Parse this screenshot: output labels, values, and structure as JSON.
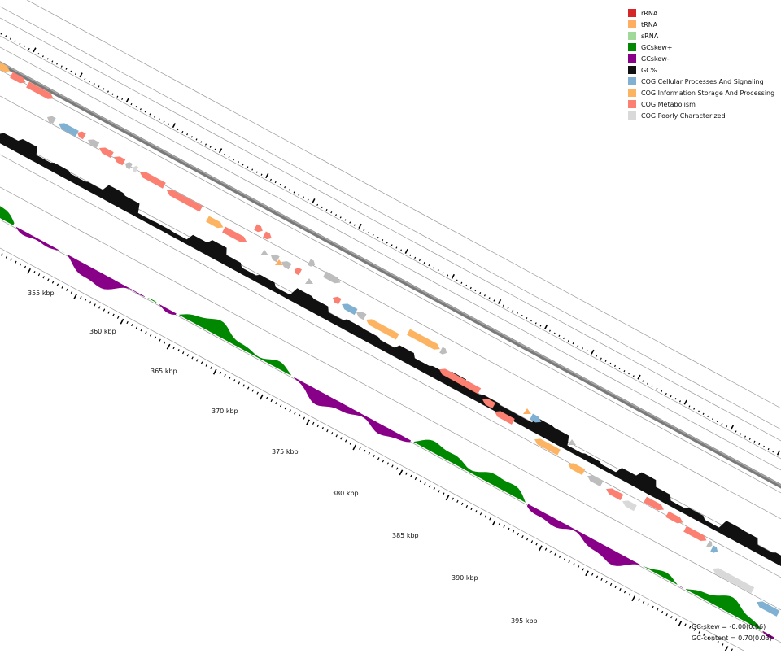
{
  "legend": [
    {
      "label": "rRNA",
      "color": "#d62728"
    },
    {
      "label": "tRNA",
      "color": "#fdae61"
    },
    {
      "label": "sRNA",
      "color": "#a1d99b"
    },
    {
      "label": "GCskew+",
      "color": "#008800"
    },
    {
      "label": "GCskew-",
      "color": "#880088"
    },
    {
      "label": "GC%",
      "color": "#111111"
    },
    {
      "label": "COG Cellular Processes And Signaling",
      "color": "#80b1d3"
    },
    {
      "label": "COG Information Storage And Processing",
      "color": "#fdb462"
    },
    {
      "label": "COG Metabolism",
      "color": "#fb8072"
    },
    {
      "label": "COG Poorly Characterized",
      "color": "#d9d9d9"
    }
  ],
  "stats": {
    "gc_skew": "GC-skew = -0.00(0.06)",
    "gc_content": "GC-content = 0.70(0.03)"
  },
  "ticks": [
    "355 kbp",
    "360 kbp",
    "365 kbp",
    "370 kbp",
    "375 kbp",
    "380 kbp",
    "385 kbp",
    "390 kbp",
    "395 kbp"
  ],
  "colors": {
    "backbone": "#7a7a7a",
    "guide": "#9a9a9a",
    "gc": "#111111",
    "skew_pos": "#008800",
    "skew_neg": "#880088",
    "unknown_gene": "#bdbdbd"
  }
}
